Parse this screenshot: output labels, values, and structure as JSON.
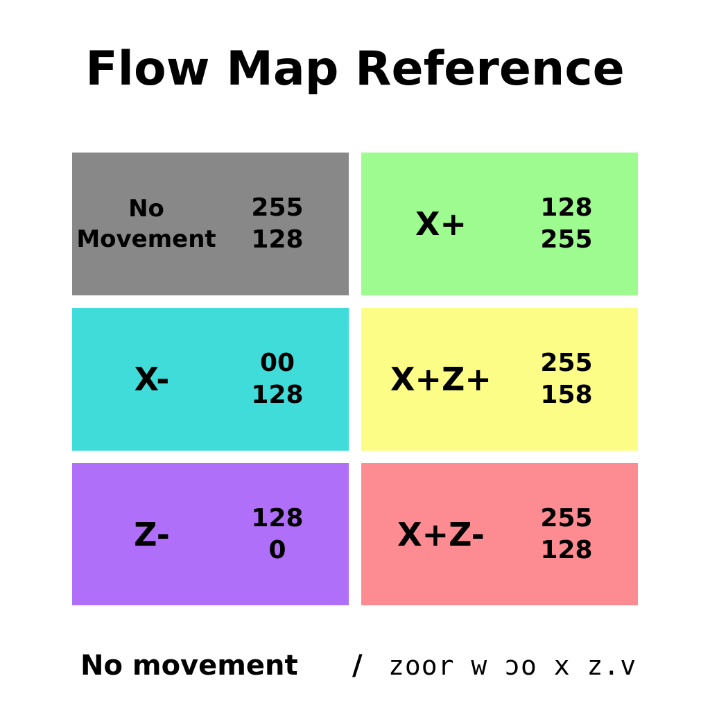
{
  "title": "Flow Map Reference",
  "cells": [
    {
      "name": "No\nMovement",
      "value_1": "255",
      "value_2": "128",
      "color": "#888888"
    },
    {
      "name": "X+",
      "value_1": "128",
      "value_2": "255",
      "color": "#9dfb8f"
    },
    {
      "name": "X-",
      "value_1": "00",
      "value_2": "128",
      "color": "#40dcd9"
    },
    {
      "name": "X+Z+",
      "value_1": "255",
      "value_2": "158",
      "color": "#fcfd87"
    },
    {
      "name": "Z-",
      "value_1": "128",
      "value_2": "0",
      "color": "#b06ff8"
    },
    {
      "name": "X+Z-",
      "value_1": "255",
      "value_2": "128",
      "color": "#fc8c91"
    }
  ],
  "footer": {
    "left": "No movement",
    "separator": "/",
    "right": "zoor w ɔo x z.v"
  }
}
